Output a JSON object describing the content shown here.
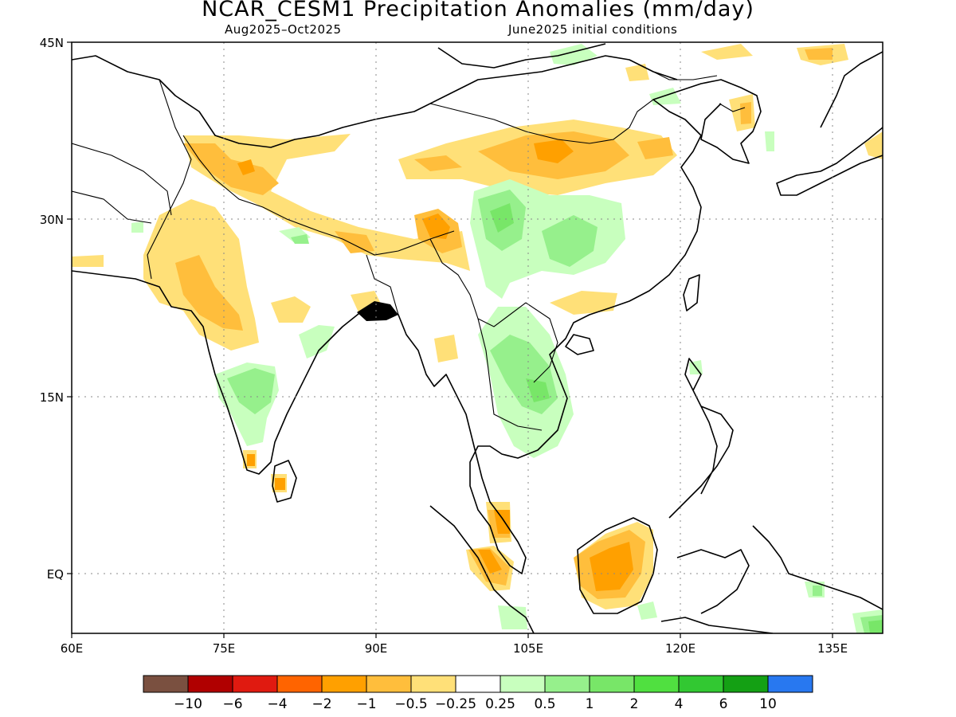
{
  "title": "NCAR_CESM1 Precipitation Anomalies (mm/day)",
  "subtitle_left": "Aug2025–Oct2025",
  "subtitle_right": "June2025 initial conditions",
  "lat_labels": [
    "45N",
    "30N",
    "15N",
    "EQ"
  ],
  "lon_labels": [
    "60E",
    "75E",
    "90E",
    "105E",
    "120E",
    "135E"
  ],
  "colorbar": {
    "colors": [
      "#7a5040",
      "#b00000",
      "#e01a10",
      "#ff6400",
      "#ffa000",
      "#ffbe3c",
      "#ffe078",
      "#ffffff",
      "#c8ffbe",
      "#96f08c",
      "#78e668",
      "#50e040",
      "#32c832",
      "#14a014",
      "#2878f0"
    ],
    "labels": [
      "−10",
      "−6",
      "−4",
      "−2",
      "−1",
      "−0.5",
      "−0.25",
      "0.25",
      "0.5",
      "1",
      "2",
      "4",
      "6",
      "10"
    ]
  },
  "map_data": {
    "variable": "Precipitation anomaly",
    "units": "mm/day",
    "lon_range": [
      60,
      140
    ],
    "lat_range": [
      -5,
      45
    ],
    "gridlines": "dotted",
    "features": [
      {
        "name": "north-china-dry",
        "sign": "negative",
        "peak": -1,
        "region": "35-37N, 90-115E"
      },
      {
        "name": "tibet-wet",
        "sign": "positive",
        "peak": 1,
        "region": "26-33N, 102-114E"
      },
      {
        "name": "indochina-wet",
        "sign": "positive",
        "peak": 1,
        "region": "12-20N, 100-108E"
      },
      {
        "name": "south-india-wet",
        "sign": "positive",
        "peak": 1,
        "region": "13-18N, 75-82E"
      },
      {
        "name": "northwest-india-dry",
        "sign": "negative",
        "peak": -1,
        "region": "20-28N, 68-78E"
      },
      {
        "name": "himalaya-dry",
        "sign": "negative",
        "peak": -1,
        "region": "27-36N, 74-98E"
      },
      {
        "name": "borneo-dry",
        "sign": "negative",
        "peak": -2,
        "region": "-3-4N, 109-117E"
      },
      {
        "name": "sumatra-malaya-dry",
        "sign": "negative",
        "peak": -2,
        "region": "-1-6N, 98-105E"
      }
    ]
  }
}
